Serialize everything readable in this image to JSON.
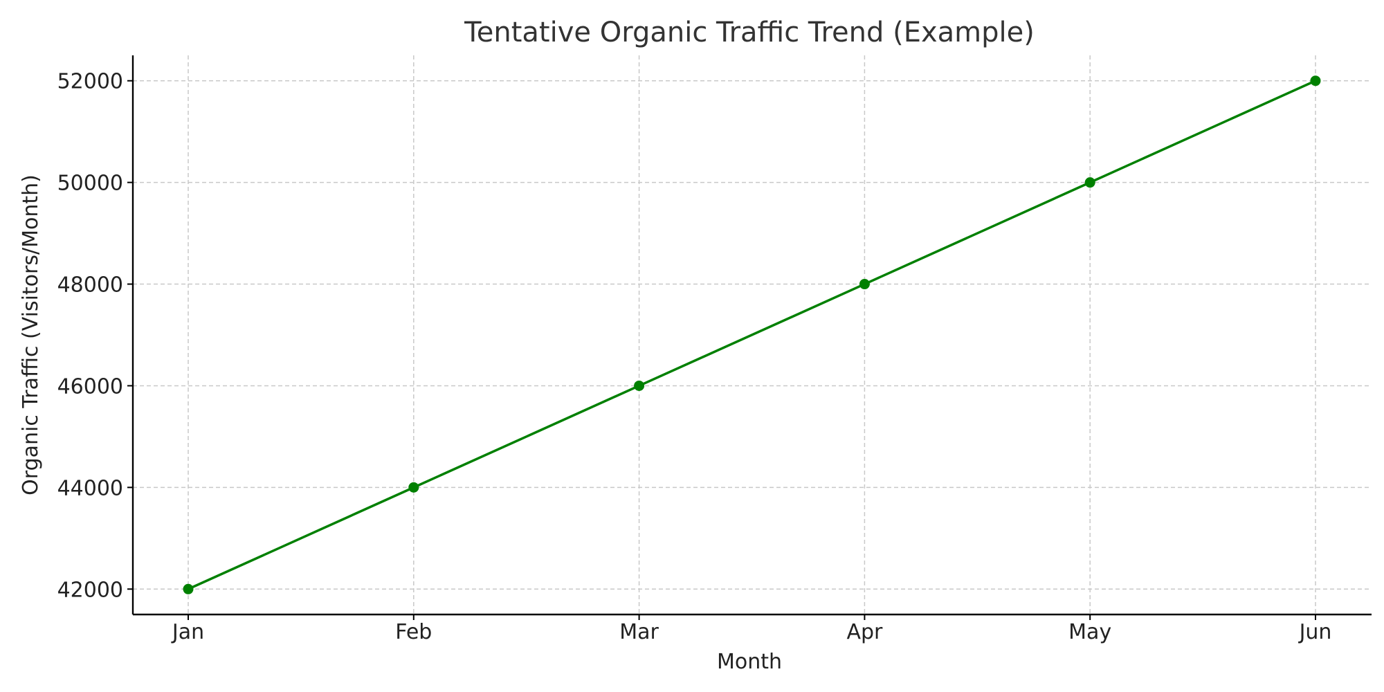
{
  "chart_data": {
    "type": "line",
    "title": "Tentative Organic Traffic Trend (Example)",
    "xlabel": "Month",
    "ylabel": "Organic Traffic (Visitors/Month)",
    "categories": [
      "Jan",
      "Feb",
      "Mar",
      "Apr",
      "May",
      "Jun"
    ],
    "series": [
      {
        "values": [
          42000,
          44000,
          46000,
          48000,
          50000,
          52000
        ],
        "color": "#008000",
        "marker": "circle"
      }
    ],
    "ylim": [
      41500,
      52500
    ],
    "yticks": [
      42000,
      44000,
      46000,
      48000,
      50000,
      52000
    ],
    "ytick_labels": [
      "42000",
      "44000",
      "46000",
      "48000",
      "50000",
      "52000"
    ],
    "grid": true,
    "legend": "none"
  }
}
